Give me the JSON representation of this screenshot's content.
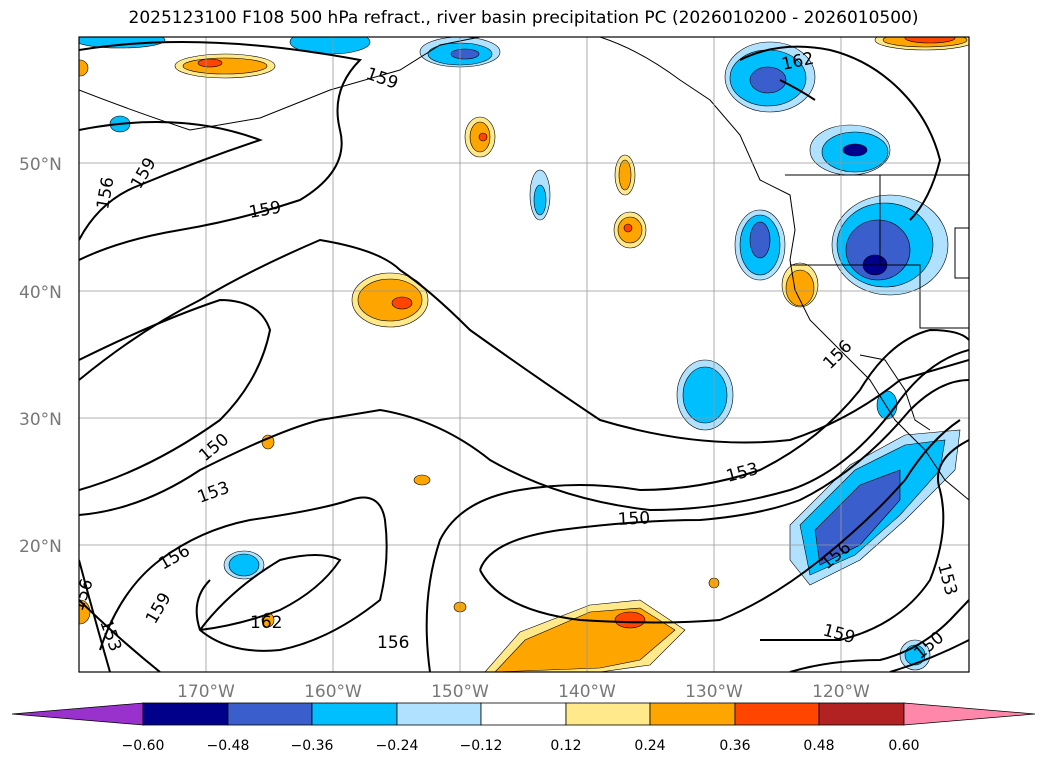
{
  "title": "2025123100 F108 500 hPa refract., river basin precipitation PC (2026010200 - 2026010500)",
  "lat_labels": [
    "50°N",
    "40°N",
    "30°N",
    "20°N"
  ],
  "lon_labels": [
    "170°W",
    "160°W",
    "150°W",
    "140°W",
    "130°W",
    "120°W"
  ],
  "contour_labels": [
    "162",
    "159",
    "159",
    "156",
    "159",
    "150",
    "153",
    "156",
    "159",
    "162",
    "156",
    "153",
    "156",
    "153",
    "150",
    "156",
    "153",
    "159",
    "150",
    "156"
  ],
  "colorbar": {
    "ticks": [
      "−0.60",
      "−0.48",
      "−0.36",
      "−0.24",
      "−0.12",
      "0.12",
      "0.24",
      "0.36",
      "0.48",
      "0.60"
    ],
    "colors": [
      "#9932cc",
      "#00008b",
      "#3a5fcd",
      "#00bfff",
      "#b0e2ff",
      "#ffffff",
      "#ffe98a",
      "#ffa500",
      "#ff4500",
      "#b22222",
      "#ff88aa"
    ]
  }
}
